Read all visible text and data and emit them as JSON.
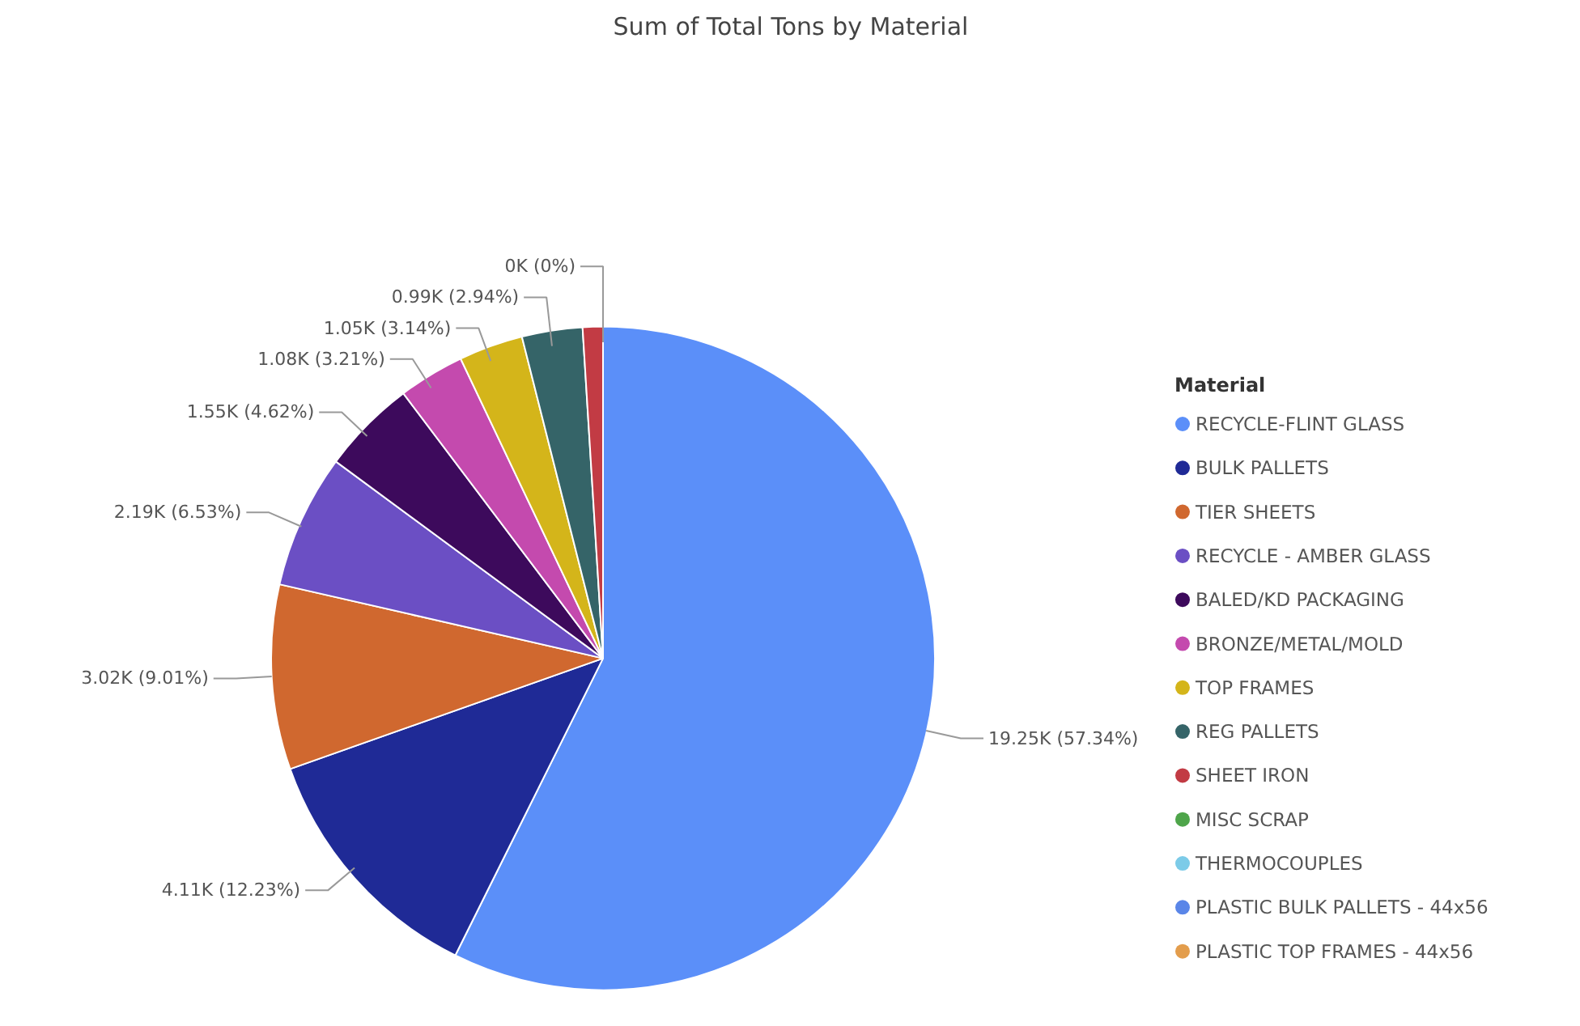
{
  "chart_data": {
    "type": "pie",
    "title": "Sum of Total Tons by Material",
    "legend_title": "Material",
    "legend": "right",
    "categories": [
      "RECYCLE-FLINT GLASS",
      "BULK PALLETS",
      "TIER SHEETS",
      "RECYCLE - AMBER GLASS",
      "BALED/KD PACKAGING",
      "BRONZE/METAL/MOLD",
      "TOP FRAMES",
      "REG PALLETS",
      "SHEET IRON",
      "MISC SCRAP",
      "THERMOCOUPLES",
      "PLASTIC BULK PALLETS - 44x56",
      "PLASTIC TOP FRAMES - 44x56"
    ],
    "values": [
      19250,
      4110,
      3020,
      2190,
      1550,
      1080,
      1050,
      990,
      330,
      0,
      0,
      0,
      0
    ],
    "value_labels": [
      "19.25K (57.34%)",
      "4.11K (12.23%)",
      "3.02K (9.01%)",
      "2.19K (6.53%)",
      "1.55K (4.62%)",
      "1.08K (3.21%)",
      "1.05K (3.14%)",
      "0.99K (2.94%)",
      null,
      "0K (0%)",
      null,
      null,
      null
    ],
    "colors": [
      "#5b8ff9",
      "#1f2a96",
      "#d0682f",
      "#6b4fc4",
      "#3d0a5c",
      "#c44aae",
      "#d4b51a",
      "#356468",
      "#c23b44",
      "#4ea54a",
      "#7ccbe8",
      "#5a86e8",
      "#e39d4c"
    ]
  }
}
